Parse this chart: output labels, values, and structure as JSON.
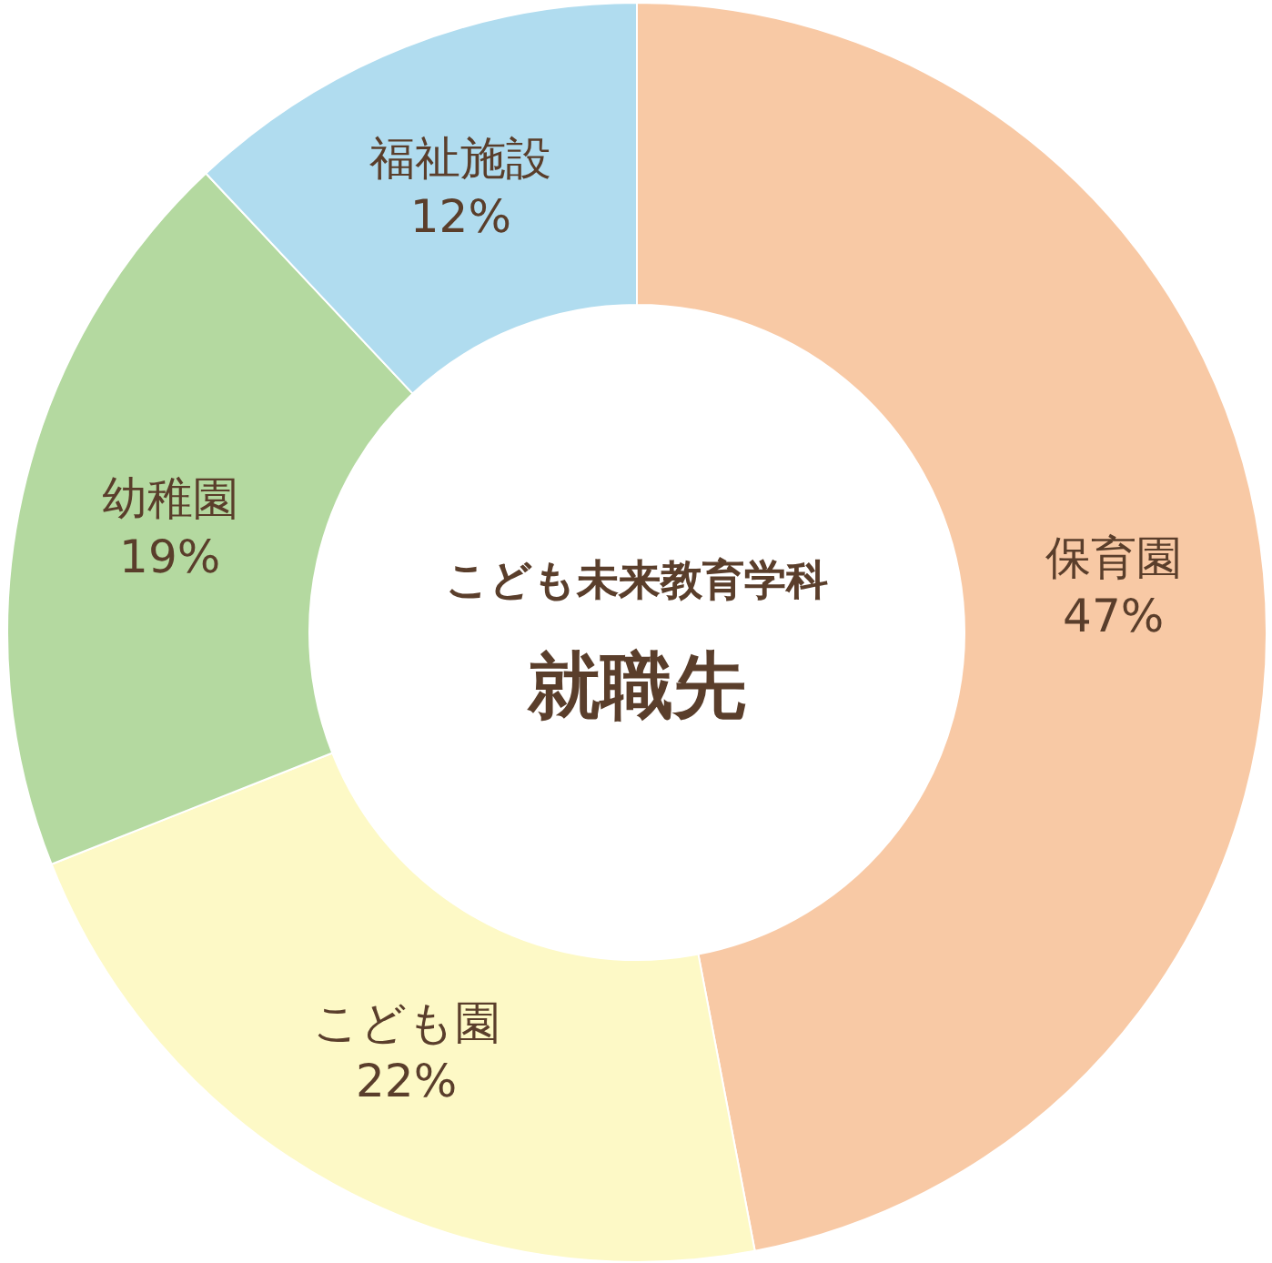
{
  "chart_data": {
    "type": "donut",
    "title": "就職先",
    "subtitle": "こども未来教育学科",
    "categories": [
      "保育園",
      "こども園",
      "幼稚園",
      "福祉施設"
    ],
    "values": [
      47,
      22,
      19,
      12
    ],
    "colors": [
      "#f8c9a5",
      "#fdf9c6",
      "#b4d9a0",
      "#b0dcef"
    ],
    "value_labels": [
      "47%",
      "22%",
      "19%",
      "12%"
    ]
  }
}
